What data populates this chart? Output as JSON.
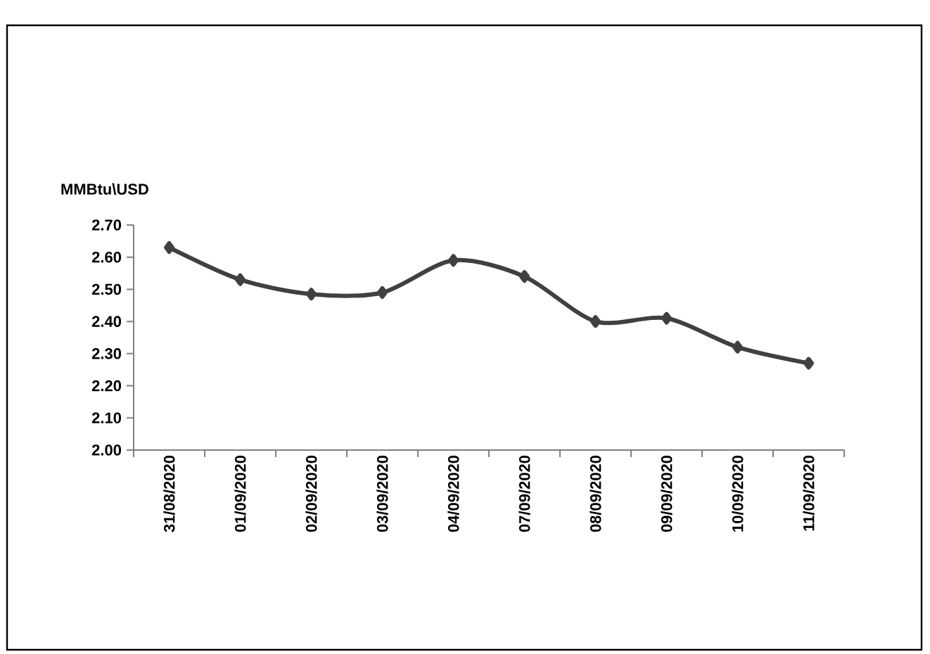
{
  "chart_data": {
    "type": "line",
    "ylabel": "MMBtu\\USD",
    "categories": [
      "31/08/2020",
      "01/09/2020",
      "02/09/2020",
      "03/09/2020",
      "04/09/2020",
      "07/09/2020",
      "08/09/2020",
      "09/09/2020",
      "10/09/2020",
      "11/09/2020"
    ],
    "series": [
      {
        "color": "#404040",
        "values": [
          2.63,
          2.53,
          2.485,
          2.49,
          2.59,
          2.54,
          2.4,
          2.41,
          2.32,
          2.27
        ]
      }
    ],
    "ylim": [
      2.0,
      2.7
    ],
    "yticks": [
      {
        "value": 2.0,
        "label": "2.00"
      },
      {
        "value": 2.1,
        "label": "2.10"
      },
      {
        "value": 2.2,
        "label": "2.20"
      },
      {
        "value": 2.3,
        "label": "2.30"
      },
      {
        "value": 2.4,
        "label": "2.40"
      },
      {
        "value": 2.5,
        "label": "2.50"
      },
      {
        "value": 2.6,
        "label": "2.60"
      },
      {
        "value": 2.7,
        "label": "2.70"
      }
    ],
    "marker": "diamond",
    "line_style": "solid",
    "grid": false
  }
}
